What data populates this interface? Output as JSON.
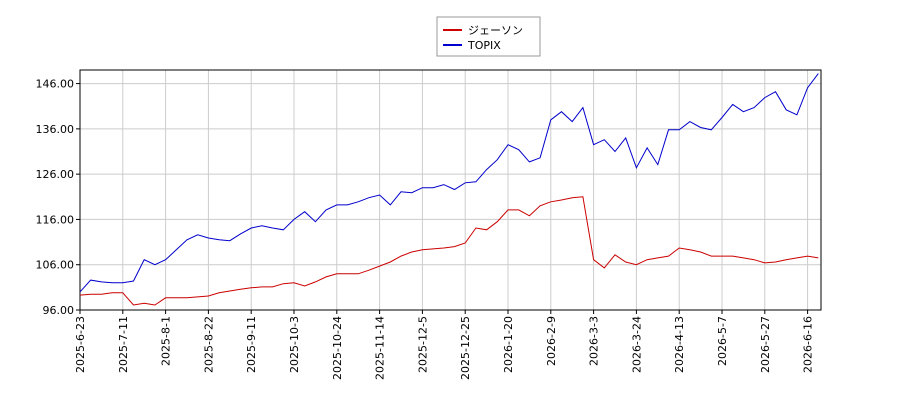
{
  "chart_data": {
    "type": "line",
    "categories": [
      "2025-6-23",
      null,
      null,
      null,
      "2025-7-11",
      null,
      null,
      null,
      "2025-8-1",
      null,
      null,
      null,
      "2025-8-22",
      null,
      null,
      null,
      "2025-9-11",
      null,
      null,
      null,
      "2025-10-3",
      null,
      null,
      null,
      "2025-10-24",
      null,
      null,
      null,
      "2025-11-14",
      null,
      null,
      null,
      "2025-12-5",
      null,
      null,
      null,
      "2025-12-25",
      null,
      null,
      null,
      "2026-1-20",
      null,
      null,
      null,
      "2026-2-9",
      null,
      null,
      null,
      "2026-3-3",
      null,
      null,
      null,
      "2026-3-24",
      null,
      null,
      null,
      "2026-4-13",
      null,
      null,
      null,
      "2026-5-7",
      null,
      null,
      null,
      "2026-5-27",
      null,
      null,
      null,
      "2026-6-16",
      null
    ],
    "series": [
      {
        "name": "ジェーソン",
        "color": "#cc0000",
        "values": [
          99.3,
          99.5,
          99.5,
          99.8,
          99.8,
          97.1,
          97.5,
          97.1,
          98.7,
          98.7,
          98.7,
          98.9,
          99.1,
          99.8,
          100.2,
          100.6,
          100.9,
          101.1,
          101.1,
          101.8,
          102.0,
          101.3,
          102.2,
          103.3,
          104.0,
          104.0,
          104.0,
          104.8,
          105.7,
          106.6,
          107.9,
          108.8,
          109.3,
          109.5,
          109.7,
          110.0,
          110.8,
          114.1,
          113.7,
          115.5,
          118.1,
          118.1,
          116.8,
          119.0,
          119.9,
          120.3,
          120.8,
          121.0,
          107.1,
          105.3,
          108.2,
          106.6,
          106.0,
          107.1,
          107.5,
          107.9,
          109.7,
          109.3,
          108.8,
          107.9,
          107.9,
          107.9,
          107.5,
          107.1,
          106.4,
          106.6,
          107.1,
          107.5,
          107.9,
          107.5
        ]
      },
      {
        "name": "TOPIX",
        "color": "#0000cc",
        "values": [
          100.0,
          102.6,
          102.2,
          102.0,
          102.0,
          102.4,
          107.1,
          106.0,
          107.1,
          109.3,
          111.5,
          112.6,
          111.9,
          111.5,
          111.3,
          112.8,
          114.1,
          114.6,
          114.1,
          113.7,
          116.0,
          117.7,
          115.5,
          118.1,
          119.2,
          119.2,
          119.9,
          120.8,
          121.4,
          119.2,
          122.1,
          121.9,
          123.0,
          123.0,
          123.7,
          122.6,
          124.1,
          124.3,
          127.0,
          129.2,
          132.5,
          131.4,
          128.7,
          129.6,
          138.0,
          139.8,
          137.6,
          140.7,
          132.5,
          133.6,
          131.0,
          134.0,
          127.4,
          131.8,
          128.1,
          135.8,
          135.8,
          137.6,
          136.3,
          135.8,
          138.5,
          141.4,
          139.8,
          140.7,
          142.9,
          144.2,
          140.2,
          139.1,
          145.1,
          148.2
        ]
      }
    ],
    "ylim": [
      96,
      149
    ],
    "yticks": [
      {
        "value": 96,
        "label": "96.00"
      },
      {
        "value": 106,
        "label": "106.00"
      },
      {
        "value": 116,
        "label": "116.00"
      },
      {
        "value": 126,
        "label": "126.00"
      },
      {
        "value": 136,
        "label": "136.00"
      },
      {
        "value": 146,
        "label": "146.00"
      }
    ],
    "grid": true
  }
}
